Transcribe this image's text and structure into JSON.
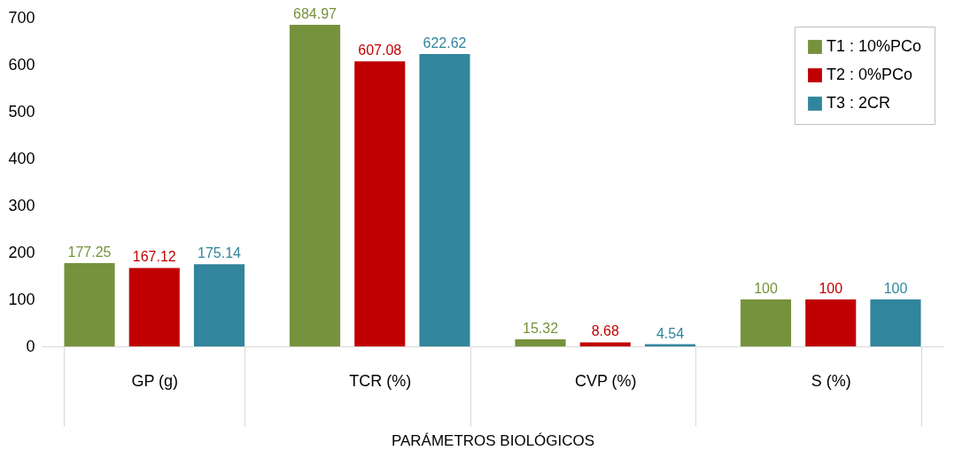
{
  "chart_data": {
    "type": "bar",
    "xlabel": "PARÁMETROS BIOLÓGICOS",
    "categories": [
      "GP (g)",
      "TCR (%)",
      "CVP (%)",
      "S (%)"
    ],
    "series": [
      {
        "name": "T1 : 10%PCo",
        "color": "#76923c",
        "values": [
          177.25,
          684.97,
          15.32,
          100
        ]
      },
      {
        "name": "T2 : 0%PCo",
        "color": "#c00000",
        "values": [
          167.12,
          607.08,
          8.68,
          100
        ]
      },
      {
        "name": "T3 : 2CR",
        "color": "#31859c",
        "values": [
          175.14,
          622.62,
          4.54,
          100
        ]
      }
    ],
    "ylim": [
      0,
      700
    ],
    "yticks": [
      0,
      100,
      200,
      300,
      400,
      500,
      600,
      700
    ],
    "grid": false,
    "legend": "top right",
    "data_labels": true
  }
}
